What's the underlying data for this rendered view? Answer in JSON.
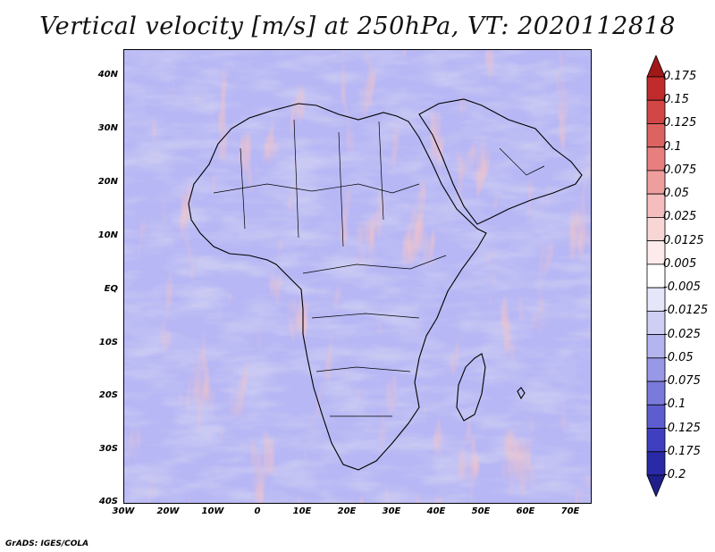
{
  "title": "Vertical velocity [m/s] at 250hPa, VT: 2020112818",
  "credit": "GrADS: IGES/COLA",
  "map": {
    "lat_labels": [
      "40N",
      "30N",
      "20N",
      "10N",
      "EQ",
      "10S",
      "20S",
      "30S",
      "40S"
    ],
    "lon_labels": [
      "30W",
      "20W",
      "10W",
      "0",
      "10E",
      "20E",
      "30E",
      "40E",
      "50E",
      "60E",
      "70E"
    ],
    "lon_range": [
      -30,
      75
    ],
    "lat_range": [
      -40,
      45
    ]
  },
  "colorbar": {
    "labels": [
      "0.175",
      "0.15",
      "0.125",
      "0.1",
      "0.075",
      "0.05",
      "0.025",
      "0.0125",
      "0.005",
      "-0.005",
      "-0.0125",
      "-0.025",
      "-0.05",
      "-0.075",
      "-0.1",
      "-0.125",
      "-0.175",
      "-0.2"
    ],
    "colors": [
      "#a01818",
      "#c02b2b",
      "#d24646",
      "#dd6262",
      "#e77f7f",
      "#ef9e9e",
      "#f5bdbd",
      "#f9d6d6",
      "#fdebeb",
      "#ffffff",
      "#e6e6fb",
      "#cfcff5",
      "#b4b4ef",
      "#9898e6",
      "#7a7adb",
      "#5d5dcf",
      "#3f3fc0",
      "#2a2aa6",
      "#1f1f8a"
    ]
  }
}
